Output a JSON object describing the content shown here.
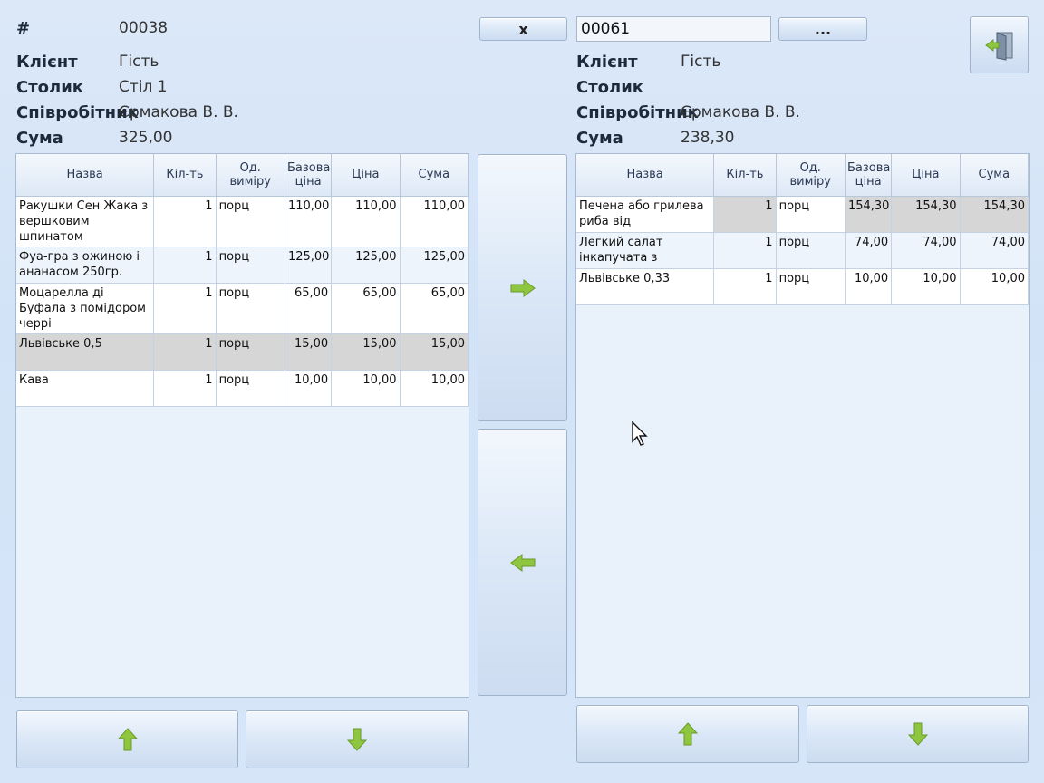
{
  "left": {
    "number_label": "#",
    "number_value": "00038",
    "client_label": "Клієнт",
    "client_value": "Гість",
    "table_label": "Столик",
    "table_value": "Стіл 1",
    "employee_label": "Співробітник",
    "employee_value": "Єрмакова В. В.",
    "sum_label": "Сума",
    "sum_value": "325,00",
    "columns": [
      "Назва",
      "Кіл-ть",
      "Од. виміру",
      "Базова ціна",
      "Ціна",
      "Сума"
    ],
    "rows": [
      {
        "name": "Ракушки Сен Жака з вершковим шпинатом",
        "qty": "1",
        "unit": "порц",
        "base": "110,00",
        "price": "110,00",
        "sum": "110,00"
      },
      {
        "name": "Фуа-гра з ожиною і ананасом 250гр.",
        "qty": "1",
        "unit": "порц",
        "base": "125,00",
        "price": "125,00",
        "sum": "125,00"
      },
      {
        "name": "Моцарелла ді Буфала з помідором черрі",
        "qty": "1",
        "unit": "порц",
        "base": "65,00",
        "price": "65,00",
        "sum": "65,00"
      },
      {
        "name": "Львівське 0,5",
        "qty": "1",
        "unit": "порц",
        "base": "15,00",
        "price": "15,00",
        "sum": "15,00"
      },
      {
        "name": "Кава",
        "qty": "1",
        "unit": "порц",
        "base": "10,00",
        "price": "10,00",
        "sum": "10,00"
      }
    ]
  },
  "right": {
    "number_value": "00061",
    "client_label": "Клієнт",
    "client_value": "Гість",
    "table_label": "Столик",
    "table_value": "",
    "employee_label": "Співробітник",
    "employee_value": "Єрмакова В. В.",
    "sum_label": "Сума",
    "sum_value": "238,30",
    "columns": [
      "Назва",
      "Кіл-ть",
      "Од. виміру",
      "Базова ціна",
      "Ціна",
      "Сума"
    ],
    "rows": [
      {
        "name": "Печена або грилева риба від",
        "qty": "1",
        "unit": "порц",
        "base": "154,30",
        "price": "154,30",
        "sum": "154,30"
      },
      {
        "name": "Легкий салат інкапучата з",
        "qty": "1",
        "unit": "порц",
        "base": "74,00",
        "price": "74,00",
        "sum": "74,00"
      },
      {
        "name": "Львівське 0,33",
        "qty": "1",
        "unit": "порц",
        "base": "10,00",
        "price": "10,00",
        "sum": "10,00"
      }
    ]
  },
  "controls": {
    "clear_label": "x",
    "browse_label": "...",
    "icons": {
      "move_right": "arrow-right-icon",
      "move_left": "arrow-left-icon",
      "up": "arrow-up-icon",
      "down": "arrow-down-icon",
      "exit": "exit-door-icon"
    }
  },
  "colors": {
    "background": "#d6e5f8",
    "selected_row": "#d6d6d6",
    "arrow_green": "#8fc63f"
  }
}
